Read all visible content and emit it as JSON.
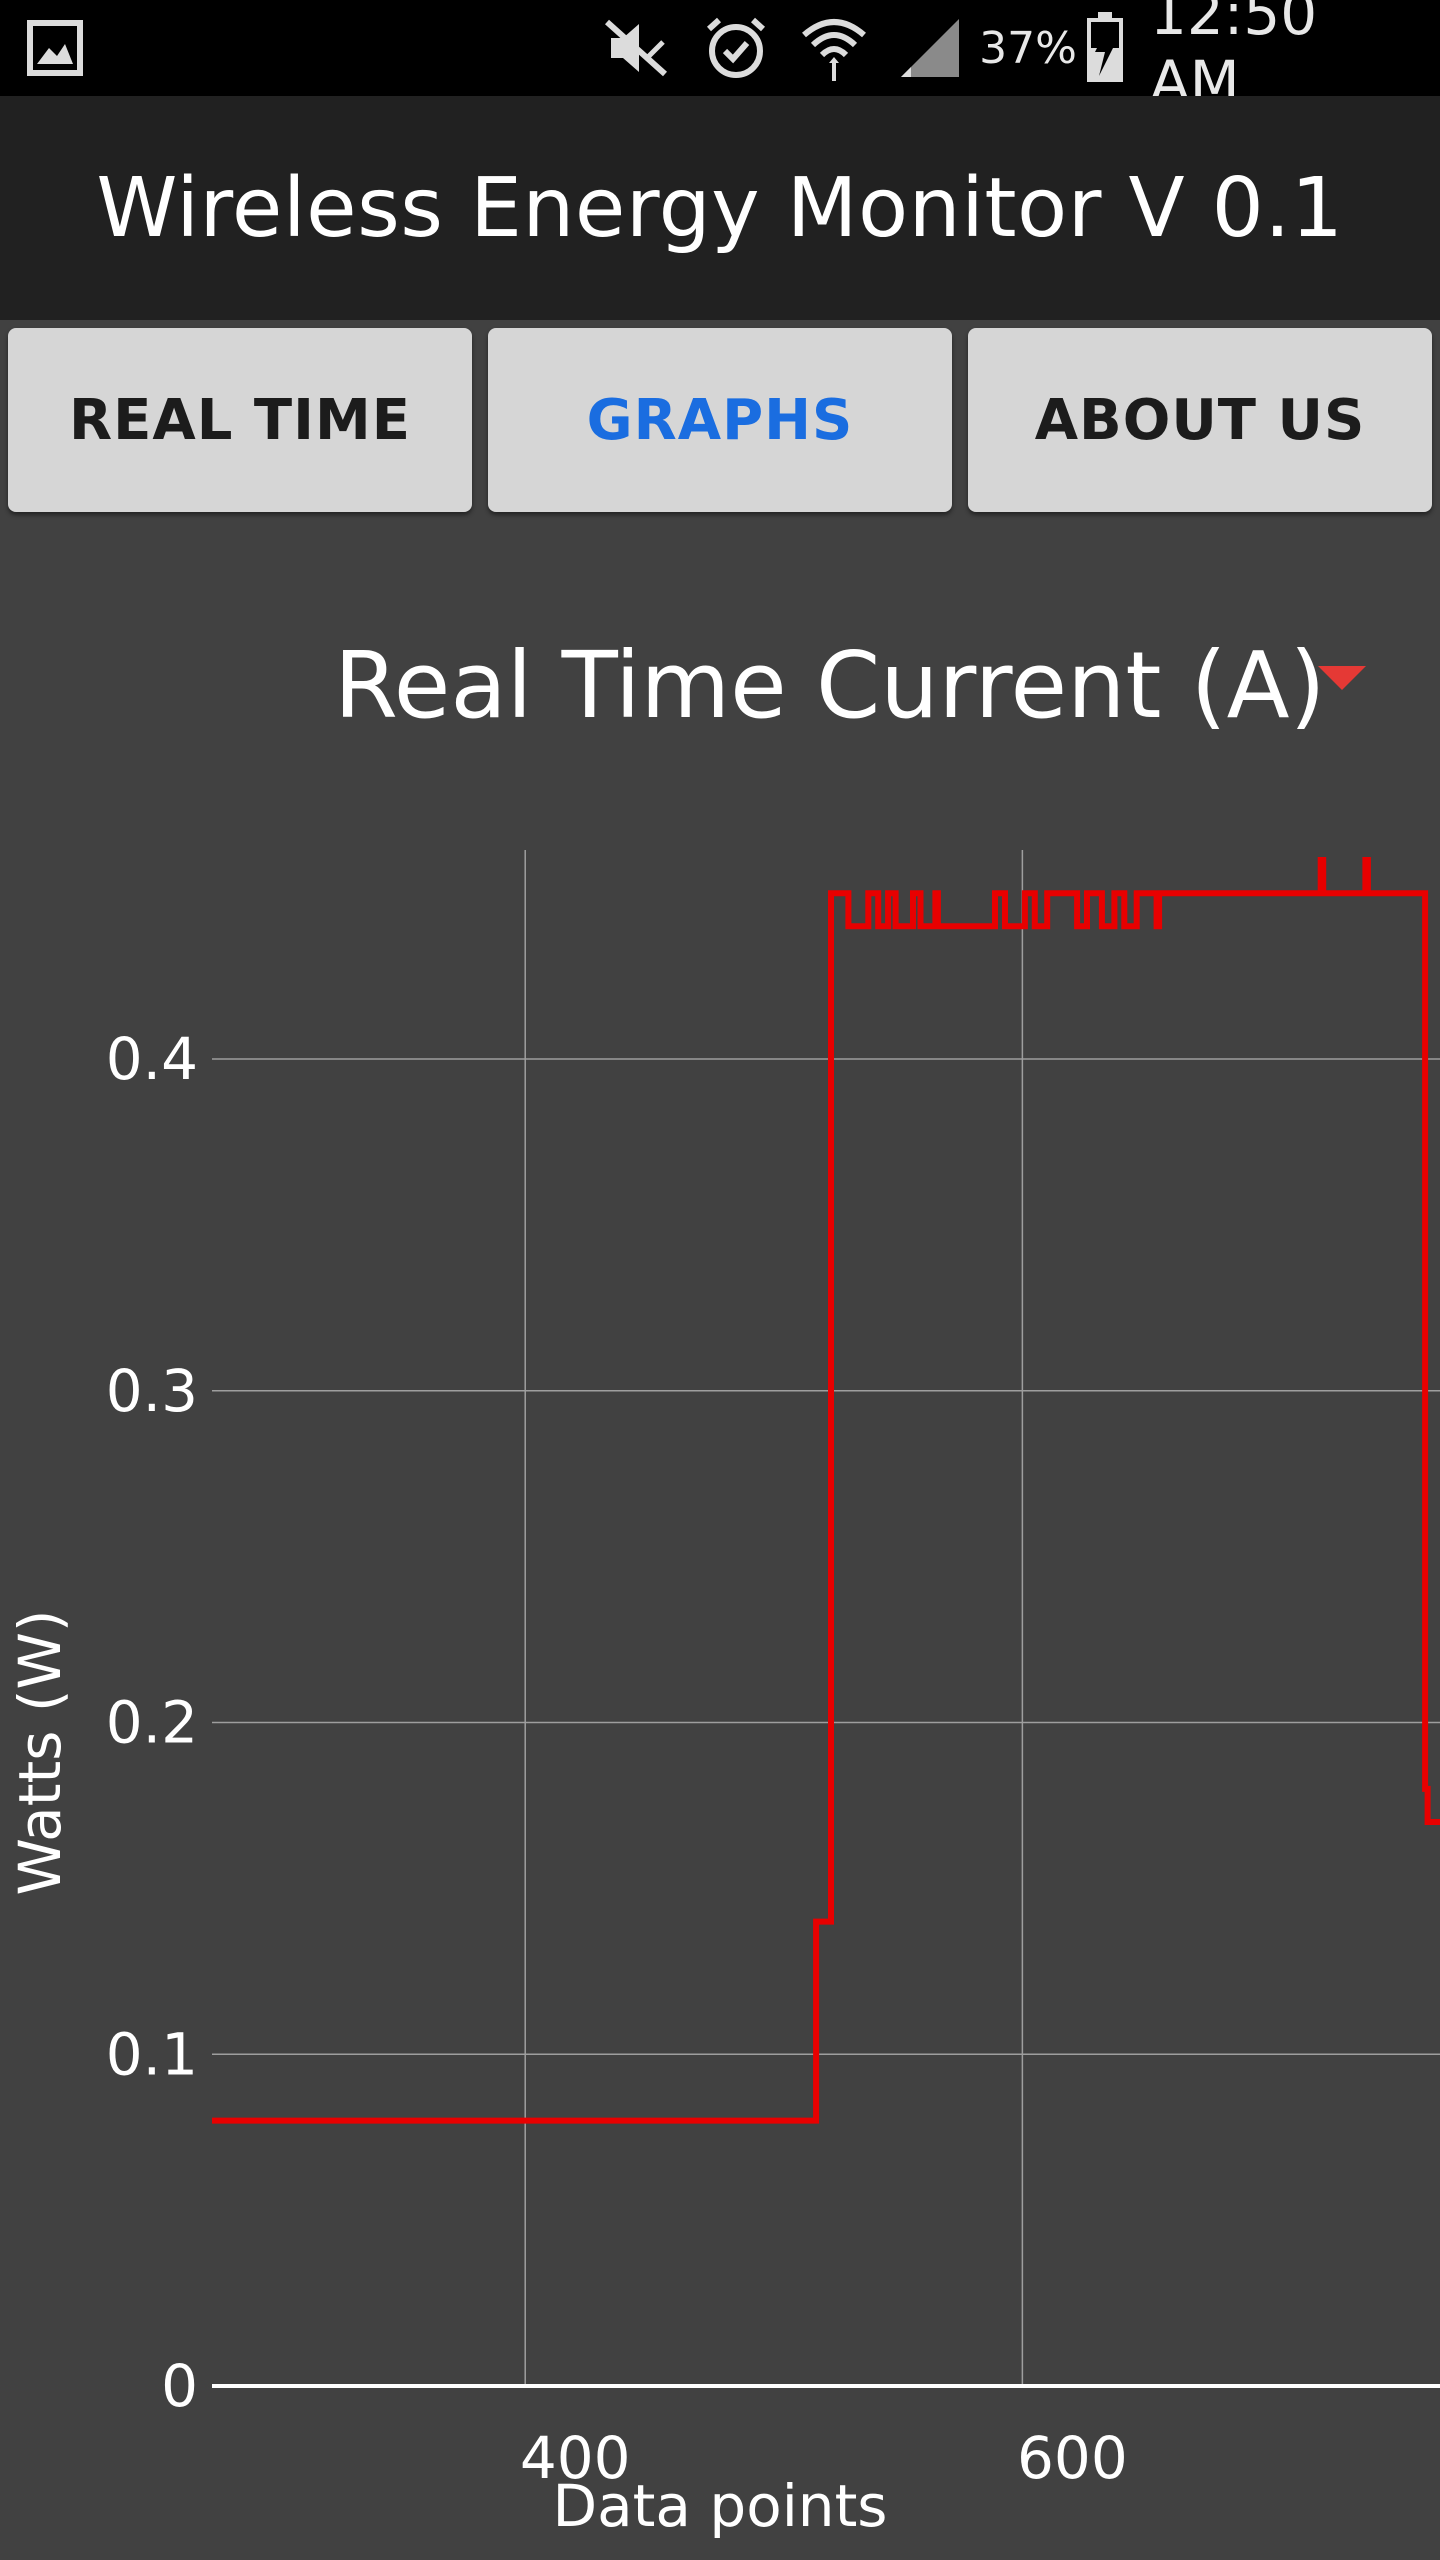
{
  "status_bar": {
    "icons": [
      "gallery-icon",
      "mute-icon",
      "alarm-icon",
      "wifi-icon",
      "signal-icon",
      "battery-charging-icon"
    ],
    "battery": "37%",
    "time": "12:50 AM"
  },
  "app": {
    "title": "Wireless Energy Monitor V 0.1"
  },
  "tabs": [
    {
      "label": "REAL TIME",
      "active": false
    },
    {
      "label": "GRAPHS",
      "active": true
    },
    {
      "label": "ABOUT US",
      "active": false
    }
  ],
  "colors": {
    "accent": "#1a6de0",
    "series": "#e80000",
    "background": "#414141"
  },
  "spinner": {
    "selected": "Real Time Current (A)"
  },
  "chart_data": {
    "type": "line",
    "title": "",
    "xlabel": "Data points",
    "ylabel": "Watts (W)",
    "xlim": [
      274,
      768
    ],
    "ylim": [
      0,
      0.46
    ],
    "grid": true,
    "x_ticks": [
      400,
      600
    ],
    "y_ticks": [
      0,
      0.1,
      0.2,
      0.3,
      0.4
    ],
    "x_tick_labels": [
      "400",
      "600"
    ],
    "y_tick_labels": [
      "0",
      "0.1",
      "0.2",
      "0.3",
      "0.4"
    ],
    "series": [
      {
        "x": [
          274,
          517,
          517,
          523,
          523,
          530,
          530,
          538,
          538,
          542,
          542,
          546,
          546,
          549,
          549,
          556,
          556,
          559,
          559,
          565,
          565,
          566,
          566,
          589,
          589,
          593,
          593,
          601,
          601,
          605,
          605,
          610,
          610,
          622,
          622,
          626,
          626,
          632,
          632,
          637,
          637,
          641,
          641,
          646,
          646,
          654,
          654,
          655,
          655,
          720,
          720,
          721,
          721,
          738,
          738,
          739,
          739,
          762,
          762,
          763,
          763,
          768
        ],
        "y": [
          0.08,
          0.08,
          0.14,
          0.14,
          0.45,
          0.45,
          0.44,
          0.44,
          0.45,
          0.45,
          0.44,
          0.44,
          0.45,
          0.45,
          0.44,
          0.44,
          0.45,
          0.45,
          0.44,
          0.44,
          0.45,
          0.45,
          0.44,
          0.44,
          0.45,
          0.45,
          0.44,
          0.44,
          0.45,
          0.45,
          0.44,
          0.44,
          0.45,
          0.45,
          0.44,
          0.44,
          0.45,
          0.45,
          0.44,
          0.44,
          0.45,
          0.45,
          0.44,
          0.44,
          0.45,
          0.45,
          0.44,
          0.44,
          0.45,
          0.45,
          0.46,
          0.46,
          0.45,
          0.45,
          0.46,
          0.46,
          0.45,
          0.45,
          0.18,
          0.18,
          0.17,
          0.17
        ]
      }
    ]
  }
}
